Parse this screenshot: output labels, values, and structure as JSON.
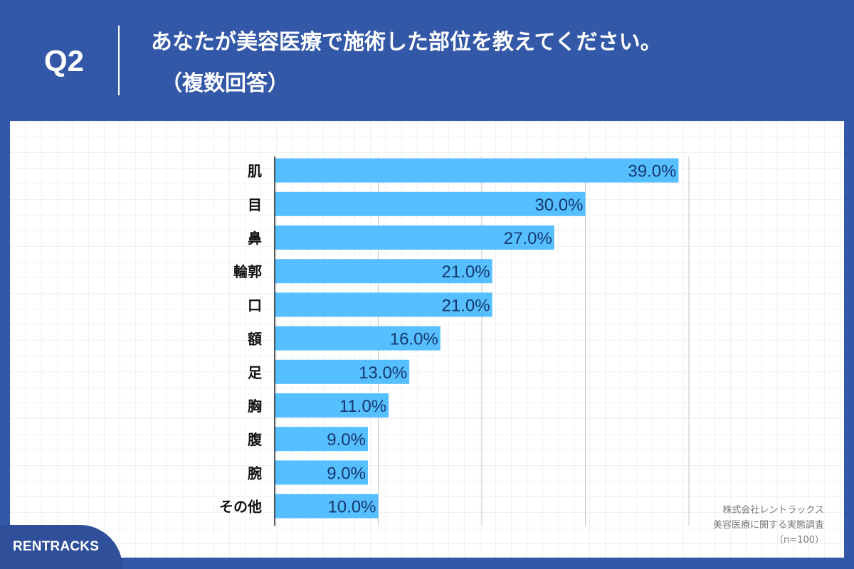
{
  "header": {
    "question": "Q2",
    "title": "あなたが美容医療で施術した部位を教えてください。",
    "subtitle": "（複数回答）"
  },
  "colors": {
    "background": "#3358a8",
    "bar": "#56bfff",
    "value_label": "#16376e",
    "category_label": "#111111"
  },
  "chart_data": {
    "type": "bar",
    "orientation": "horizontal",
    "categories": [
      "肌",
      "目",
      "鼻",
      "輪郭",
      "口",
      "額",
      "足",
      "胸",
      "腹",
      "腕",
      "その他"
    ],
    "values": [
      39.0,
      30.0,
      27.0,
      21.0,
      21.0,
      16.0,
      13.0,
      11.0,
      9.0,
      9.0,
      10.0
    ],
    "value_labels": [
      "39.0%",
      "30.0%",
      "27.0%",
      "21.0%",
      "21.0%",
      "16.0%",
      "13.0%",
      "11.0%",
      "9.0%",
      "9.0%",
      "10.0%"
    ],
    "xlim": [
      0,
      40
    ],
    "gridline_values": [
      10,
      20,
      30,
      40
    ],
    "grid": true
  },
  "source": {
    "line1": "株式会社レントラックス",
    "line2": "美容医療に関する実態調査",
    "line3": "（n=100）"
  },
  "logo": {
    "text": "RENTRACKS"
  }
}
